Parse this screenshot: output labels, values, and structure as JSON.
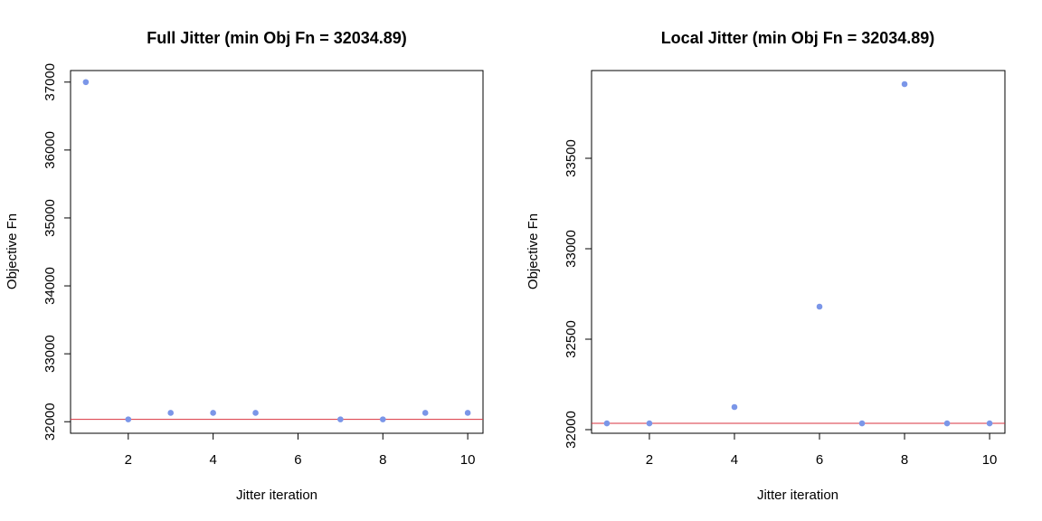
{
  "chart_data": [
    {
      "type": "scatter",
      "title": "Full Jitter (min Obj Fn = 32034.89)",
      "xlabel": "Jitter iteration",
      "ylabel": "Objective Fn",
      "xlim": [
        0.64,
        10.36
      ],
      "ylim": [
        31830,
        37170
      ],
      "xticks": [
        2,
        4,
        6,
        8,
        10
      ],
      "yticks": [
        32000,
        33000,
        34000,
        35000,
        36000,
        37000
      ],
      "grid": false,
      "x": [
        1,
        2,
        3,
        4,
        5,
        7,
        8,
        9,
        10
      ],
      "y": [
        37000,
        32034.89,
        32130,
        32130,
        32130,
        32034.89,
        32034.89,
        32130,
        32130
      ],
      "reference_line": {
        "y": 32034.89,
        "color": "#d9333f"
      },
      "point_color": "#7b96e8"
    },
    {
      "type": "scatter",
      "title": "Local Jitter (min Obj Fn = 32034.89)",
      "xlabel": "Jitter iteration",
      "ylabel": "Objective Fn",
      "xlim": [
        0.64,
        10.36
      ],
      "ylim": [
        31980,
        33985
      ],
      "xticks": [
        2,
        4,
        6,
        8,
        10
      ],
      "yticks": [
        32000,
        32500,
        33000,
        33500
      ],
      "grid": false,
      "x": [
        1,
        2,
        4,
        6,
        7,
        8,
        9,
        10
      ],
      "y": [
        32034.89,
        32034.89,
        32125,
        32680,
        32034.89,
        33910,
        32034.89,
        32034.89
      ],
      "reference_line": {
        "y": 32034.89,
        "color": "#d9333f"
      },
      "point_color": "#7b96e8"
    }
  ]
}
